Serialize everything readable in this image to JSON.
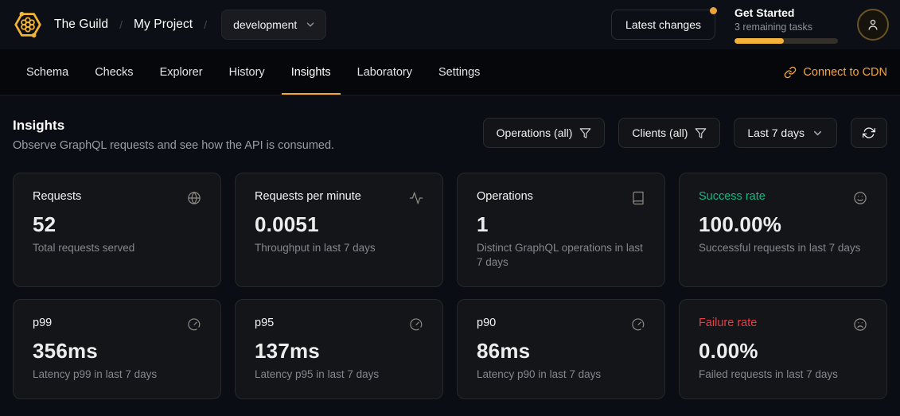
{
  "header": {
    "breadcrumb": {
      "org": "The Guild",
      "separator": "/",
      "project": "My Project"
    },
    "environment_select": {
      "value": "development"
    },
    "latest_changes": {
      "label": "Latest changes"
    },
    "get_started": {
      "title": "Get Started",
      "subtitle": "3 remaining tasks",
      "progress_percent": 48
    }
  },
  "nav": {
    "tabs": [
      {
        "label": "Schema",
        "active": false
      },
      {
        "label": "Checks",
        "active": false
      },
      {
        "label": "Explorer",
        "active": false
      },
      {
        "label": "History",
        "active": false
      },
      {
        "label": "Insights",
        "active": true
      },
      {
        "label": "Laboratory",
        "active": false
      },
      {
        "label": "Settings",
        "active": false
      }
    ],
    "cdn_link": {
      "label": "Connect to CDN"
    }
  },
  "insights": {
    "title": "Insights",
    "subtitle": "Observe GraphQL requests and see how the API is consumed.",
    "filters": {
      "operations": {
        "label": "Operations (all)"
      },
      "clients": {
        "label": "Clients (all)"
      },
      "period": {
        "label": "Last 7 days"
      }
    }
  },
  "stats": [
    {
      "title": "Requests",
      "value": "52",
      "description": "Total requests served",
      "icon": "globe-icon"
    },
    {
      "title": "Requests per minute",
      "value": "0.0051",
      "description": "Throughput in last 7 days",
      "icon": "activity-icon"
    },
    {
      "title": "Operations",
      "value": "1",
      "description": "Distinct GraphQL operations in last 7 days",
      "icon": "book-icon"
    },
    {
      "title": "Success rate",
      "value": "100.00%",
      "description": "Successful requests in last 7 days",
      "icon": "smile-icon",
      "title_color": "#10b981"
    },
    {
      "title": "p99",
      "value": "356ms",
      "description": "Latency p99 in last 7 days",
      "icon": "gauge-icon"
    },
    {
      "title": "p95",
      "value": "137ms",
      "description": "Latency p95 in last 7 days",
      "icon": "gauge-icon"
    },
    {
      "title": "p90",
      "value": "86ms",
      "description": "Latency p90 in last 7 days",
      "icon": "gauge-icon"
    },
    {
      "title": "Failure rate",
      "value": "0.00%",
      "description": "Failed requests in last 7 days",
      "icon": "frown-icon",
      "title_color": "#ee3a43"
    }
  ],
  "colors": {
    "accent": "#f4a62e",
    "success": "#10b981",
    "failure": "#ee3a43"
  }
}
